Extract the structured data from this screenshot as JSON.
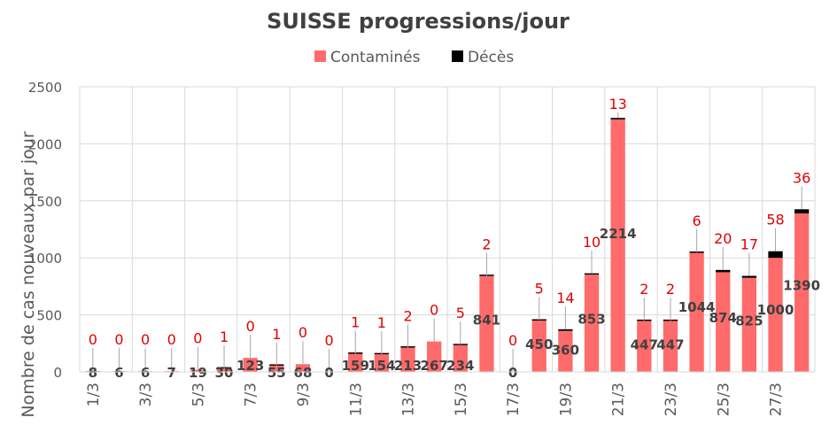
{
  "chart_data": {
    "type": "bar",
    "stacked": true,
    "title": "SUISSE  progressions/jour",
    "ylabel": "Nombre de cas nouveaux par jour",
    "xlabel": "",
    "ylim": [
      0,
      2500
    ],
    "yticks": [
      "0",
      "500",
      "1000",
      "1500",
      "2000",
      "2500"
    ],
    "ytick_values": [
      0,
      500,
      1000,
      1500,
      2000,
      2500
    ],
    "grid": true,
    "legend_position": "top-center",
    "categories": [
      "1/3",
      "2/3",
      "3/3",
      "4/3",
      "5/3",
      "6/3",
      "7/3",
      "8/3",
      "9/3",
      "10/3",
      "11/3",
      "12/3",
      "13/3",
      "14/3",
      "15/3",
      "16/3",
      "17/3",
      "18/3",
      "19/3",
      "20/3",
      "21/3",
      "22/3",
      "23/3",
      "24/3",
      "25/3",
      "26/3",
      "27/3",
      "28/3"
    ],
    "xtick_labels": [
      "1/3",
      "3/3",
      "5/3",
      "7/3",
      "9/3",
      "11/3",
      "13/3",
      "15/3",
      "17/3",
      "19/3",
      "21/3",
      "23/3",
      "25/3",
      "27/3"
    ],
    "series": [
      {
        "name": "Contaminés",
        "color": "#ff6b6b",
        "values": [
          8,
          6,
          6,
          7,
          19,
          30,
          123,
          55,
          68,
          0,
          159,
          154,
          213,
          267,
          234,
          841,
          0,
          450,
          360,
          853,
          2214,
          447,
          447,
          1044,
          874,
          825,
          1000,
          1390
        ]
      },
      {
        "name": "Décès",
        "color": "#000000",
        "values": [
          0,
          0,
          0,
          0,
          0,
          1,
          0,
          1,
          0,
          0,
          1,
          1,
          2,
          0,
          5,
          2,
          0,
          5,
          14,
          10,
          13,
          2,
          2,
          6,
          20,
          17,
          58,
          36
        ]
      }
    ]
  }
}
